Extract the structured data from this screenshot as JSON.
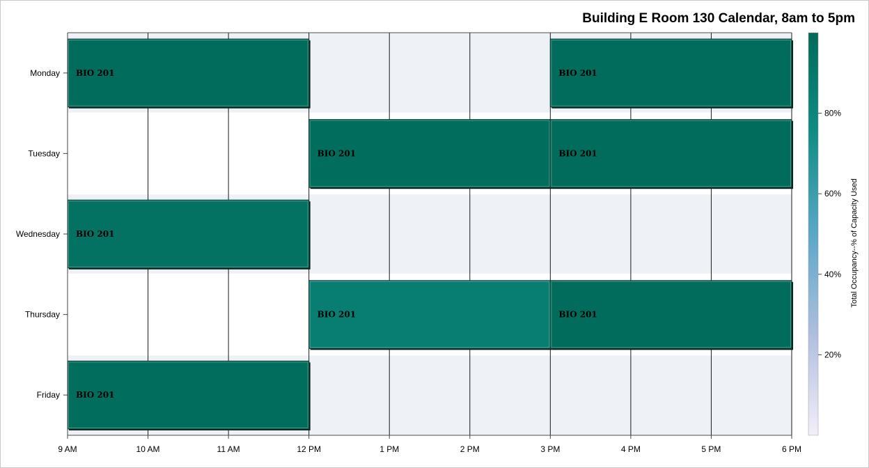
{
  "chart_data": {
    "type": "heatmap",
    "title": "Building E Room 130 Calendar, 8am to 5pm",
    "x_tick_labels": [
      "9 AM",
      "10 AM",
      "11 AM",
      "12 PM",
      "1 PM",
      "2 PM",
      "3 PM",
      "4 PM",
      "5 PM",
      "6 PM"
    ],
    "xlim": [
      9,
      18
    ],
    "days": [
      "Monday",
      "Tuesday",
      "Wednesday",
      "Thursday",
      "Friday"
    ],
    "grid": true,
    "colorbar": {
      "label": "Total Occupancy--% of Capacity Used",
      "range": [
        0,
        100
      ],
      "ticks": [
        20,
        40,
        60,
        80
      ],
      "tick_labels": [
        "20%",
        "40%",
        "60%",
        "80%"
      ],
      "colors": [
        "#f4eefa",
        "#aebfde",
        "#5ba7c8",
        "#0f8d84",
        "#006b5a"
      ],
      "placement": "right"
    },
    "events": [
      {
        "day": "Monday",
        "start": 9,
        "end": 12,
        "label": "BIO 201",
        "occupancy": 99
      },
      {
        "day": "Monday",
        "start": 15,
        "end": 18,
        "label": "BIO 201",
        "occupancy": 99
      },
      {
        "day": "Tuesday",
        "start": 12,
        "end": 15,
        "label": "BIO 201",
        "occupancy": 98
      },
      {
        "day": "Tuesday",
        "start": 15,
        "end": 18,
        "label": "BIO 201",
        "occupancy": 99
      },
      {
        "day": "Wednesday",
        "start": 9,
        "end": 12,
        "label": "BIO 201",
        "occupancy": 95
      },
      {
        "day": "Thursday",
        "start": 12,
        "end": 15,
        "label": "BIO 201",
        "occupancy": 86
      },
      {
        "day": "Thursday",
        "start": 15,
        "end": 18,
        "label": "BIO 201",
        "occupancy": 99
      },
      {
        "day": "Friday",
        "start": 9,
        "end": 12,
        "label": "BIO 201",
        "occupancy": 98
      }
    ]
  }
}
